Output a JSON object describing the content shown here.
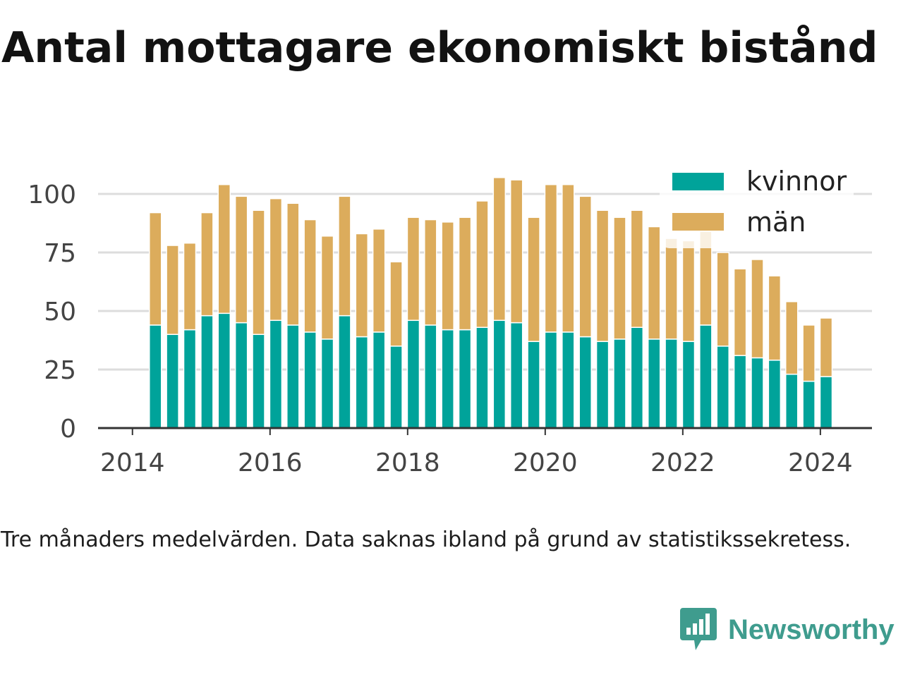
{
  "title": "Antal mottagare ekonomiskt bistånd",
  "footnote": "Tre månaders medelvärden. Data saknas ibland på grund av statistikssekretess.",
  "logo": {
    "text": "Newsworthy",
    "icon": "newsworthy-logo-icon",
    "color": "#3f9c8e"
  },
  "colors": {
    "kvinnor": "#00a39a",
    "man": "#dcac5c",
    "grid": "#dddddd",
    "axis": "#333333",
    "text": "#444444"
  },
  "chart_data": {
    "type": "bar",
    "stacked": true,
    "title": "Antal mottagare ekonomiskt bistånd",
    "xlabel": "",
    "ylabel": "",
    "ylim": [
      0,
      110
    ],
    "xlim": [
      "2013-07",
      "2024-10"
    ],
    "grid": true,
    "legend": "top-right",
    "y_ticks": [
      "0",
      "25",
      "50",
      "75",
      "100"
    ],
    "x_ticks": [
      "2014",
      "2016",
      "2018",
      "2020",
      "2022",
      "2024"
    ],
    "periods": [
      "2014-05",
      "2014-08",
      "2014-11",
      "2015-02",
      "2015-05",
      "2015-08",
      "2015-11",
      "2016-02",
      "2016-05",
      "2016-08",
      "2016-11",
      "2017-02",
      "2017-05",
      "2017-08",
      "2017-11",
      "2018-02",
      "2018-05",
      "2018-08",
      "2018-11",
      "2019-02",
      "2019-05",
      "2019-08",
      "2019-11",
      "2020-02",
      "2020-05",
      "2020-08",
      "2020-11",
      "2021-02",
      "2021-05",
      "2021-08",
      "2021-11",
      "2022-02",
      "2022-05",
      "2022-08",
      "2022-11",
      "2023-02",
      "2023-05",
      "2023-08",
      "2023-11",
      "2024-02"
    ],
    "series": [
      {
        "name": "kvinnor",
        "values": [
          44,
          40,
          42,
          48,
          49,
          45,
          40,
          46,
          44,
          41,
          38,
          48,
          39,
          41,
          35,
          46,
          44,
          42,
          42,
          43,
          46,
          45,
          37,
          41,
          41,
          39,
          37,
          38,
          43,
          38,
          38,
          37,
          44,
          35,
          31,
          30,
          29,
          23,
          20,
          22
        ]
      },
      {
        "name": "män",
        "values": [
          48,
          38,
          37,
          44,
          55,
          54,
          53,
          52,
          52,
          48,
          44,
          51,
          44,
          44,
          36,
          44,
          45,
          46,
          48,
          54,
          61,
          61,
          53,
          63,
          63,
          60,
          56,
          52,
          50,
          48,
          43,
          43,
          40,
          40,
          37,
          42,
          36,
          31,
          24,
          25
        ]
      }
    ]
  }
}
